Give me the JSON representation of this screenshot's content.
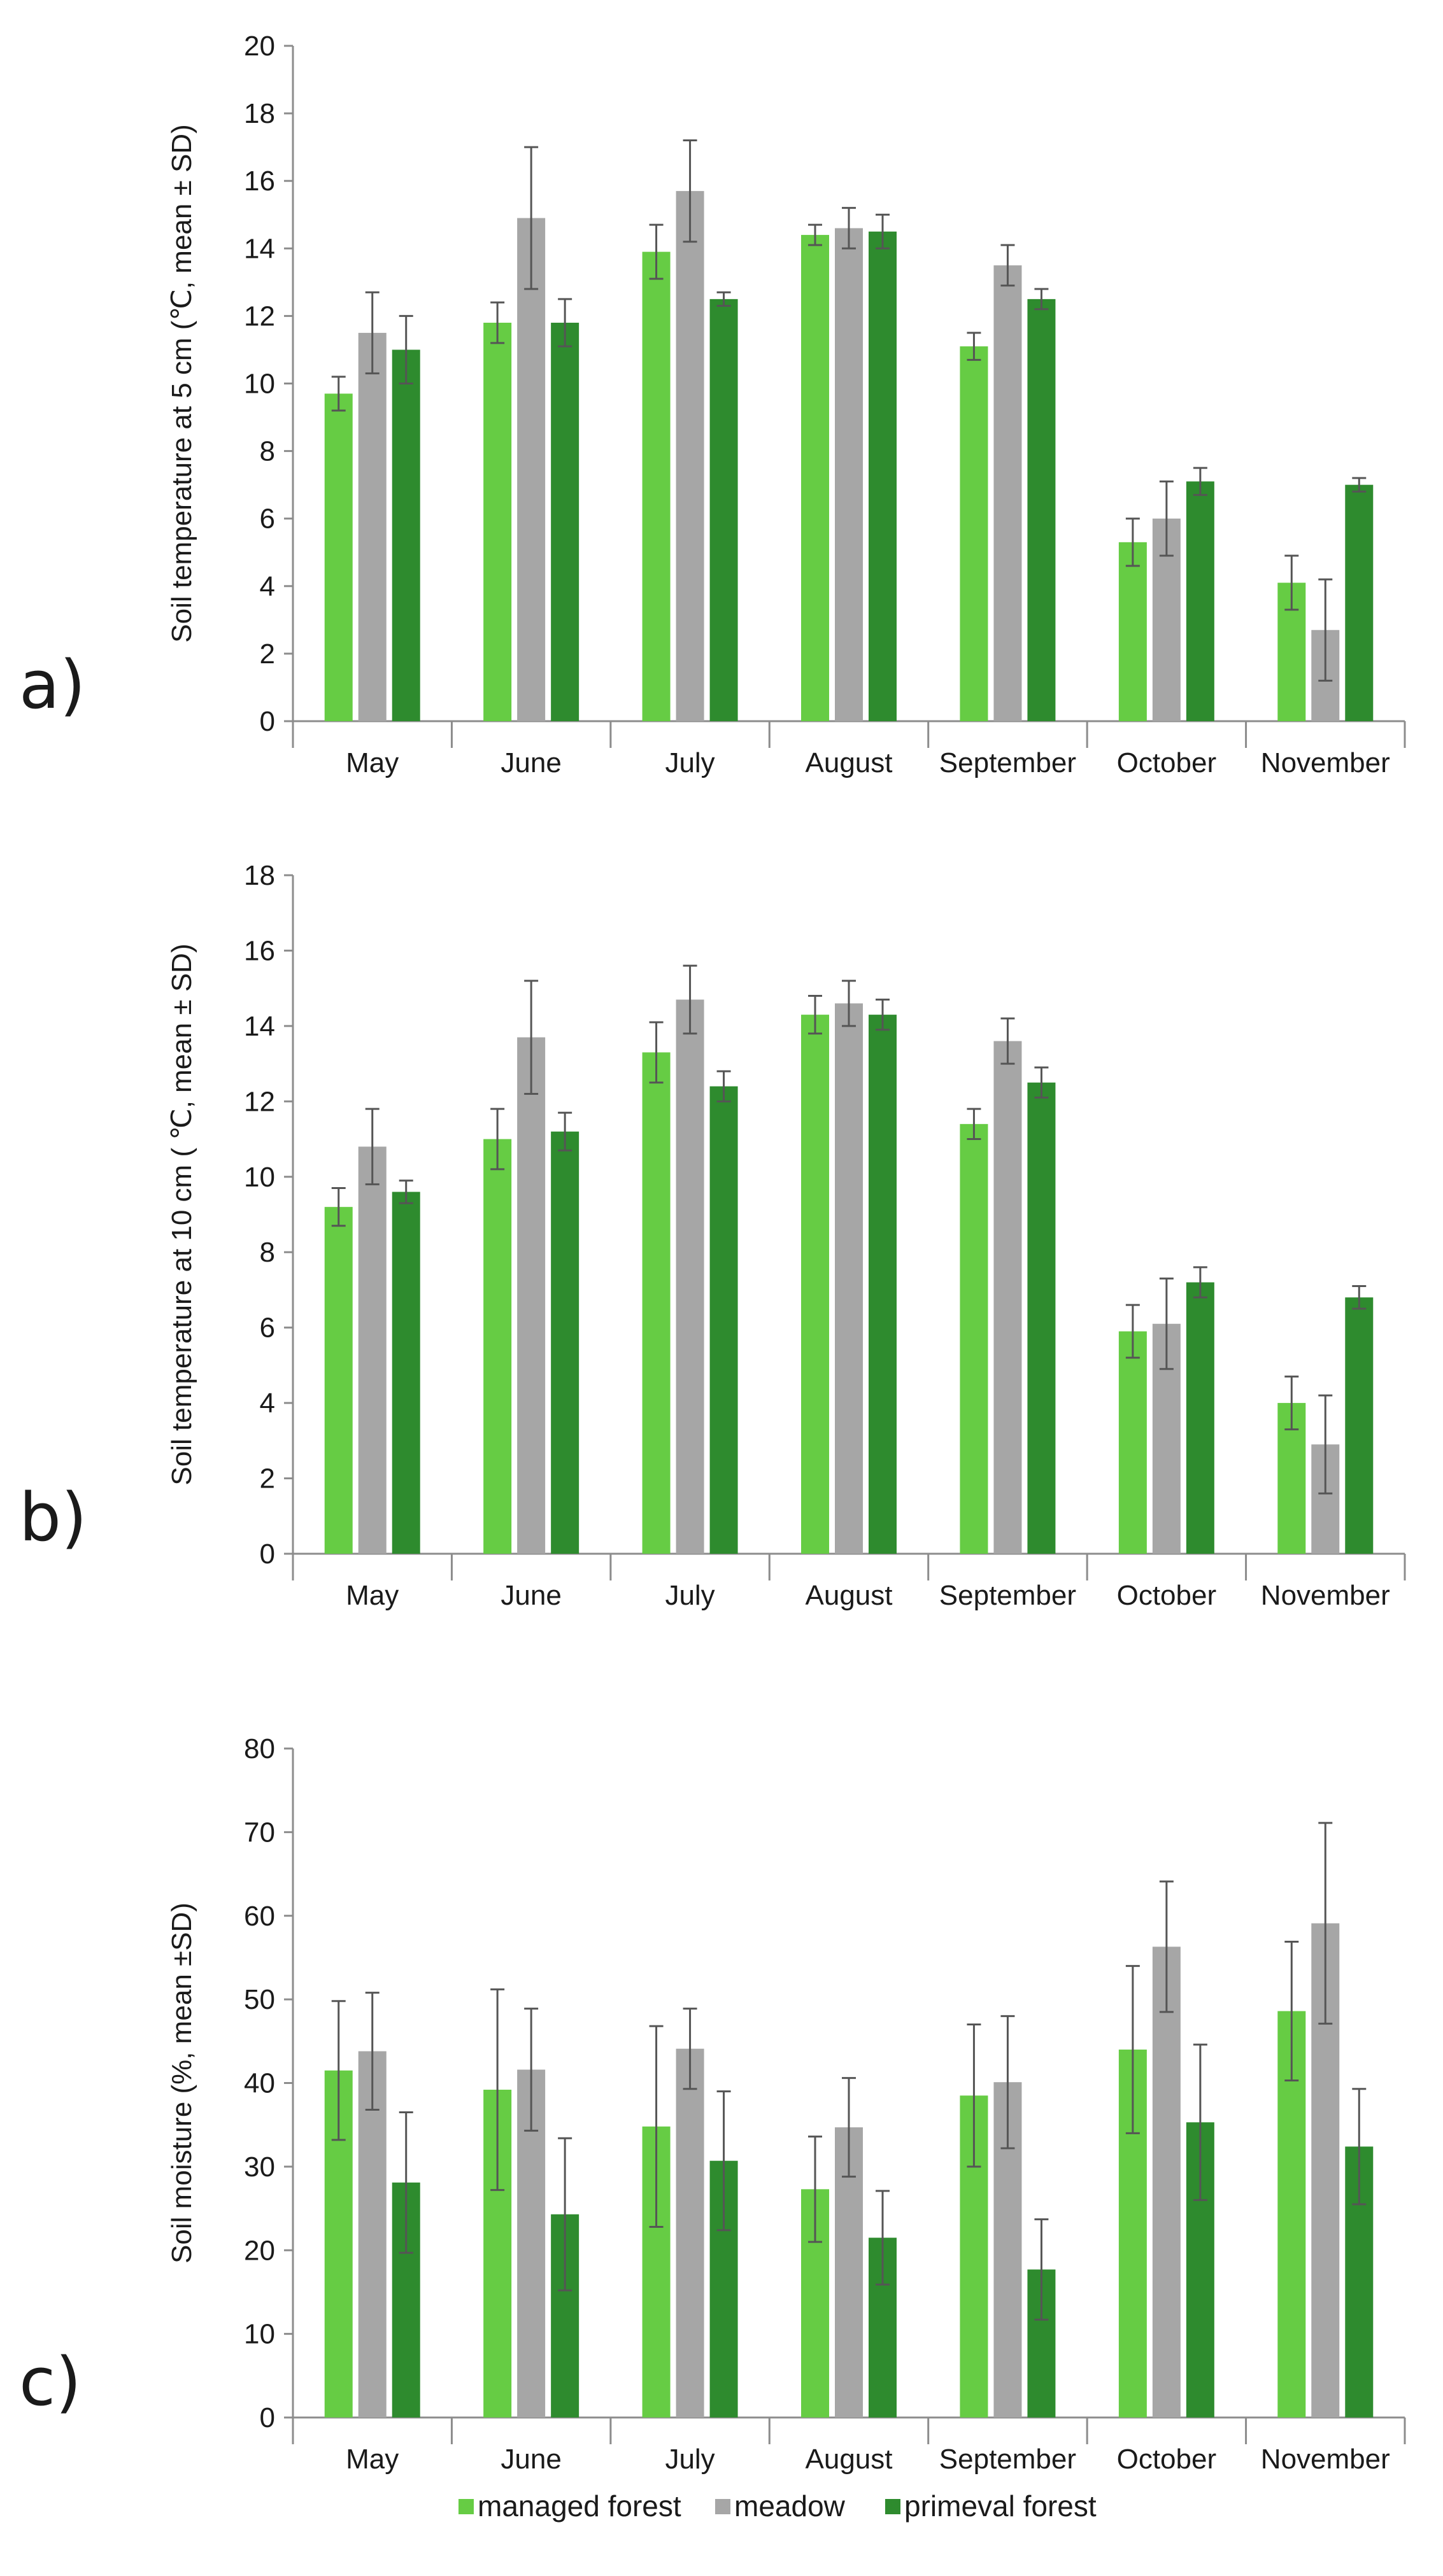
{
  "colors": {
    "managed_forest": "#66cc44",
    "meadow": "#a6a6a6",
    "primeval_forest": "#2e8b2e",
    "axis": "#8c8c8c",
    "errorbar": "#555555"
  },
  "legend": {
    "placement": "bottom-center",
    "items": [
      "managed forest",
      "meadow",
      "primeval forest"
    ]
  },
  "chart_data": [
    {
      "type": "bar",
      "panel_label": "a)",
      "ylabel": "Soil temperature at 5 cm (℃, mean ± SD)",
      "ylim": [
        0,
        20
      ],
      "yticks": [
        0,
        2,
        4,
        6,
        8,
        10,
        12,
        14,
        16,
        18,
        20
      ],
      "categories": [
        "May",
        "June",
        "July",
        "August",
        "September",
        "October",
        "November"
      ],
      "series": [
        {
          "name": "managed forest",
          "values": [
            9.7,
            11.8,
            13.9,
            14.4,
            11.1,
            5.3,
            4.1
          ],
          "errors": [
            0.5,
            0.6,
            0.8,
            0.3,
            0.4,
            0.7,
            0.8
          ]
        },
        {
          "name": "meadow",
          "values": [
            11.5,
            14.9,
            15.7,
            14.6,
            13.5,
            6.0,
            2.7
          ],
          "errors": [
            1.2,
            2.1,
            1.5,
            0.6,
            0.6,
            1.1,
            1.5
          ]
        },
        {
          "name": "primeval forest",
          "values": [
            11.0,
            11.8,
            12.5,
            14.5,
            12.5,
            7.1,
            7.0
          ],
          "errors": [
            1.0,
            0.7,
            0.2,
            0.5,
            0.3,
            0.4,
            0.2
          ]
        }
      ]
    },
    {
      "type": "bar",
      "panel_label": "b)",
      "ylabel": "Soil temperature at 10 cm ( ℃, mean ± SD)",
      "ylim": [
        0,
        18
      ],
      "yticks": [
        0,
        2,
        4,
        6,
        8,
        10,
        12,
        14,
        16,
        18
      ],
      "categories": [
        "May",
        "June",
        "July",
        "August",
        "September",
        "October",
        "November"
      ],
      "series": [
        {
          "name": "managed forest",
          "values": [
            9.2,
            11.0,
            13.3,
            14.3,
            11.4,
            5.9,
            4.0
          ],
          "errors": [
            0.5,
            0.8,
            0.8,
            0.5,
            0.4,
            0.7,
            0.7
          ]
        },
        {
          "name": "meadow",
          "values": [
            10.8,
            13.7,
            14.7,
            14.6,
            13.6,
            6.1,
            2.9
          ],
          "errors": [
            1.0,
            1.5,
            0.9,
            0.6,
            0.6,
            1.2,
            1.3
          ]
        },
        {
          "name": "primeval forest",
          "values": [
            9.6,
            11.2,
            12.4,
            14.3,
            12.5,
            7.2,
            6.8
          ],
          "errors": [
            0.3,
            0.5,
            0.4,
            0.4,
            0.4,
            0.4,
            0.3
          ]
        }
      ]
    },
    {
      "type": "bar",
      "panel_label": "c)",
      "ylabel": "Soil moisture (%, mean ±SD)",
      "ylim": [
        0,
        80
      ],
      "yticks": [
        0,
        10,
        20,
        30,
        40,
        50,
        60,
        70,
        80
      ],
      "categories": [
        "May",
        "June",
        "July",
        "August",
        "September",
        "October",
        "November"
      ],
      "series": [
        {
          "name": "managed forest",
          "values": [
            41.5,
            39.2,
            34.8,
            27.3,
            38.5,
            44.0,
            48.6
          ],
          "errors": [
            8.3,
            12.0,
            12.0,
            6.3,
            8.5,
            10.0,
            8.3
          ]
        },
        {
          "name": "meadow",
          "values": [
            43.8,
            41.6,
            44.1,
            34.7,
            40.1,
            56.3,
            59.1
          ],
          "errors": [
            7.0,
            7.3,
            4.8,
            5.9,
            7.9,
            7.8,
            12.0
          ]
        },
        {
          "name": "primeval forest",
          "values": [
            28.1,
            24.3,
            30.7,
            21.5,
            17.7,
            35.3,
            32.4
          ],
          "errors": [
            8.4,
            9.1,
            8.3,
            5.6,
            6.0,
            9.3,
            6.9
          ]
        }
      ]
    }
  ]
}
